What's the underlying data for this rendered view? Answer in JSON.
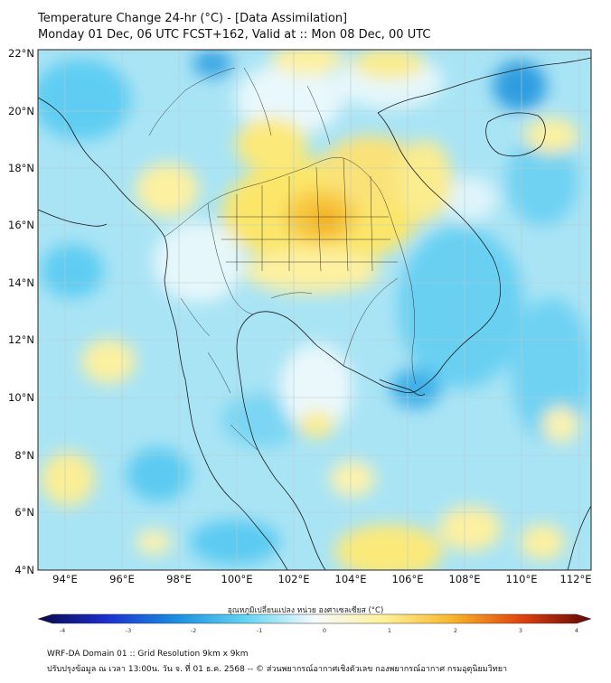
{
  "header": {
    "title_line1": "Temperature Change 24-hr (°C) - [Data Assimilation]",
    "title_line2": "Monday 01 Dec, 06 UTC FCST+162, Valid at :: Mon 08 Dec, 00 UTC"
  },
  "axes": {
    "lat_labels": [
      "22°N",
      "20°N",
      "18°N",
      "16°N",
      "14°N",
      "12°N",
      "10°N",
      "8°N",
      "6°N",
      "4°N"
    ],
    "lon_labels": [
      "94°E",
      "96°E",
      "98°E",
      "100°E",
      "102°E",
      "104°E",
      "106°E",
      "108°E",
      "110°E",
      "112°E"
    ]
  },
  "map": {
    "lat_range": [
      4,
      22.2
    ],
    "lon_range": [
      93.1,
      112.5
    ],
    "background_color": "#a9e4f5",
    "grid_color": "#b9c9cf",
    "border_color": "#1a1a1a"
  },
  "colorbar": {
    "title": "อุณหภูมิเปลี่ยนแปลง หน่วย องศาเซลเซียส (°C)",
    "ticks": [
      "-4",
      "-3",
      "-2",
      "-1",
      "0",
      "1",
      "2",
      "3",
      "4"
    ],
    "range": [
      -4,
      4
    ],
    "stops": [
      {
        "v": -4,
        "color": "#08084a"
      },
      {
        "v": -3,
        "color": "#1c2fcf"
      },
      {
        "v": -2,
        "color": "#1a8fe0"
      },
      {
        "v": -1,
        "color": "#63d4f2"
      },
      {
        "v": 0,
        "color": "#f5fbfd"
      },
      {
        "v": 1,
        "color": "#fff19a"
      },
      {
        "v": 2,
        "color": "#f7b52a"
      },
      {
        "v": 3,
        "color": "#e0410e"
      },
      {
        "v": 4,
        "color": "#5e0707"
      }
    ]
  },
  "footer": {
    "line1": "WRF-DA Domain 01 :: Grid Resolution 9km x 9km",
    "line2": "ปรับปรุงข้อมูล ณ เวลา 13:00น. วัน จ. ที่ 01 ธ.ค. 2568 -- © ส่วนพยากรณ์อากาศเชิงตัวเลข กองพยากรณ์อากาศ กรมอุตุนิยมวิทยา"
  }
}
